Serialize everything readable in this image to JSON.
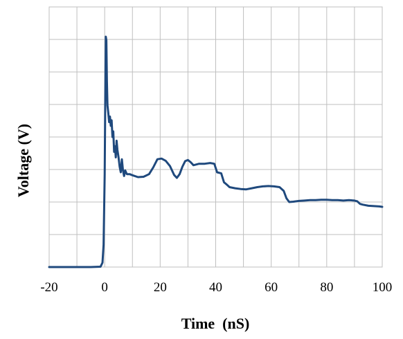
{
  "chart_data": {
    "type": "line",
    "title": "",
    "xlabel": "Time  (nS)",
    "ylabel": "Voltage (V)",
    "xlim": [
      -20,
      100
    ],
    "ylim": [
      0,
      7
    ],
    "x_tick_values": [
      -20,
      0,
      20,
      40,
      60,
      80,
      100
    ],
    "x_tick_labels": [
      "-20",
      "0",
      "20",
      "40",
      "60",
      "80",
      "100"
    ],
    "x_grid_step": 10,
    "y_grid_step": 0.875,
    "grid": true,
    "legend": "none",
    "series": [
      {
        "color": "#1f497d",
        "points": [
          [
            -20,
            0.0
          ],
          [
            -15,
            0.0
          ],
          [
            -10,
            0.0
          ],
          [
            -5,
            0.0
          ],
          [
            -1.5,
            0.01
          ],
          [
            -0.8,
            0.12
          ],
          [
            -0.4,
            0.6
          ],
          [
            0.0,
            2.5
          ],
          [
            0.2,
            4.5
          ],
          [
            0.4,
            6.2
          ],
          [
            0.6,
            6.1
          ],
          [
            0.8,
            5.0
          ],
          [
            1.0,
            4.35
          ],
          [
            1.3,
            4.15
          ],
          [
            1.6,
            3.9
          ],
          [
            1.9,
            4.05
          ],
          [
            2.2,
            3.8
          ],
          [
            2.5,
            3.95
          ],
          [
            2.8,
            3.5
          ],
          [
            3.1,
            3.65
          ],
          [
            3.4,
            3.1
          ],
          [
            3.7,
            3.25
          ],
          [
            4.0,
            2.95
          ],
          [
            4.3,
            3.4
          ],
          [
            4.6,
            3.15
          ],
          [
            5.0,
            2.95
          ],
          [
            5.4,
            2.7
          ],
          [
            5.8,
            2.55
          ],
          [
            6.2,
            2.9
          ],
          [
            6.6,
            2.6
          ],
          [
            7.0,
            2.45
          ],
          [
            7.4,
            2.6
          ],
          [
            8.0,
            2.5
          ],
          [
            9.0,
            2.5
          ],
          [
            10.0,
            2.47
          ],
          [
            12.0,
            2.42
          ],
          [
            14.0,
            2.43
          ],
          [
            16.0,
            2.5
          ],
          [
            17.5,
            2.68
          ],
          [
            19.0,
            2.9
          ],
          [
            20.5,
            2.92
          ],
          [
            22.0,
            2.86
          ],
          [
            23.5,
            2.72
          ],
          [
            25.0,
            2.48
          ],
          [
            26.0,
            2.4
          ],
          [
            27.0,
            2.5
          ],
          [
            28.0,
            2.7
          ],
          [
            29.0,
            2.85
          ],
          [
            30.0,
            2.88
          ],
          [
            31.0,
            2.82
          ],
          [
            32.0,
            2.74
          ],
          [
            34.0,
            2.78
          ],
          [
            36.0,
            2.78
          ],
          [
            38.0,
            2.8
          ],
          [
            39.5,
            2.78
          ],
          [
            40.5,
            2.55
          ],
          [
            42.0,
            2.52
          ],
          [
            43.0,
            2.28
          ],
          [
            44.0,
            2.22
          ],
          [
            45.0,
            2.15
          ],
          [
            47.0,
            2.12
          ],
          [
            49.0,
            2.1
          ],
          [
            51.0,
            2.09
          ],
          [
            53.0,
            2.12
          ],
          [
            55.0,
            2.15
          ],
          [
            57.0,
            2.17
          ],
          [
            59.0,
            2.18
          ],
          [
            61.0,
            2.17
          ],
          [
            63.0,
            2.15
          ],
          [
            64.5,
            2.05
          ],
          [
            65.5,
            1.85
          ],
          [
            66.5,
            1.75
          ],
          [
            68.0,
            1.76
          ],
          [
            70.0,
            1.78
          ],
          [
            72.0,
            1.79
          ],
          [
            74.0,
            1.8
          ],
          [
            76.0,
            1.8
          ],
          [
            78.0,
            1.81
          ],
          [
            80.0,
            1.81
          ],
          [
            82.0,
            1.8
          ],
          [
            84.0,
            1.8
          ],
          [
            86.0,
            1.79
          ],
          [
            88.0,
            1.8
          ],
          [
            90.0,
            1.79
          ],
          [
            91.0,
            1.77
          ],
          [
            92.0,
            1.7
          ],
          [
            93.0,
            1.68
          ],
          [
            95.0,
            1.65
          ],
          [
            97.0,
            1.64
          ],
          [
            99.0,
            1.63
          ],
          [
            100.0,
            1.62
          ]
        ]
      }
    ]
  }
}
